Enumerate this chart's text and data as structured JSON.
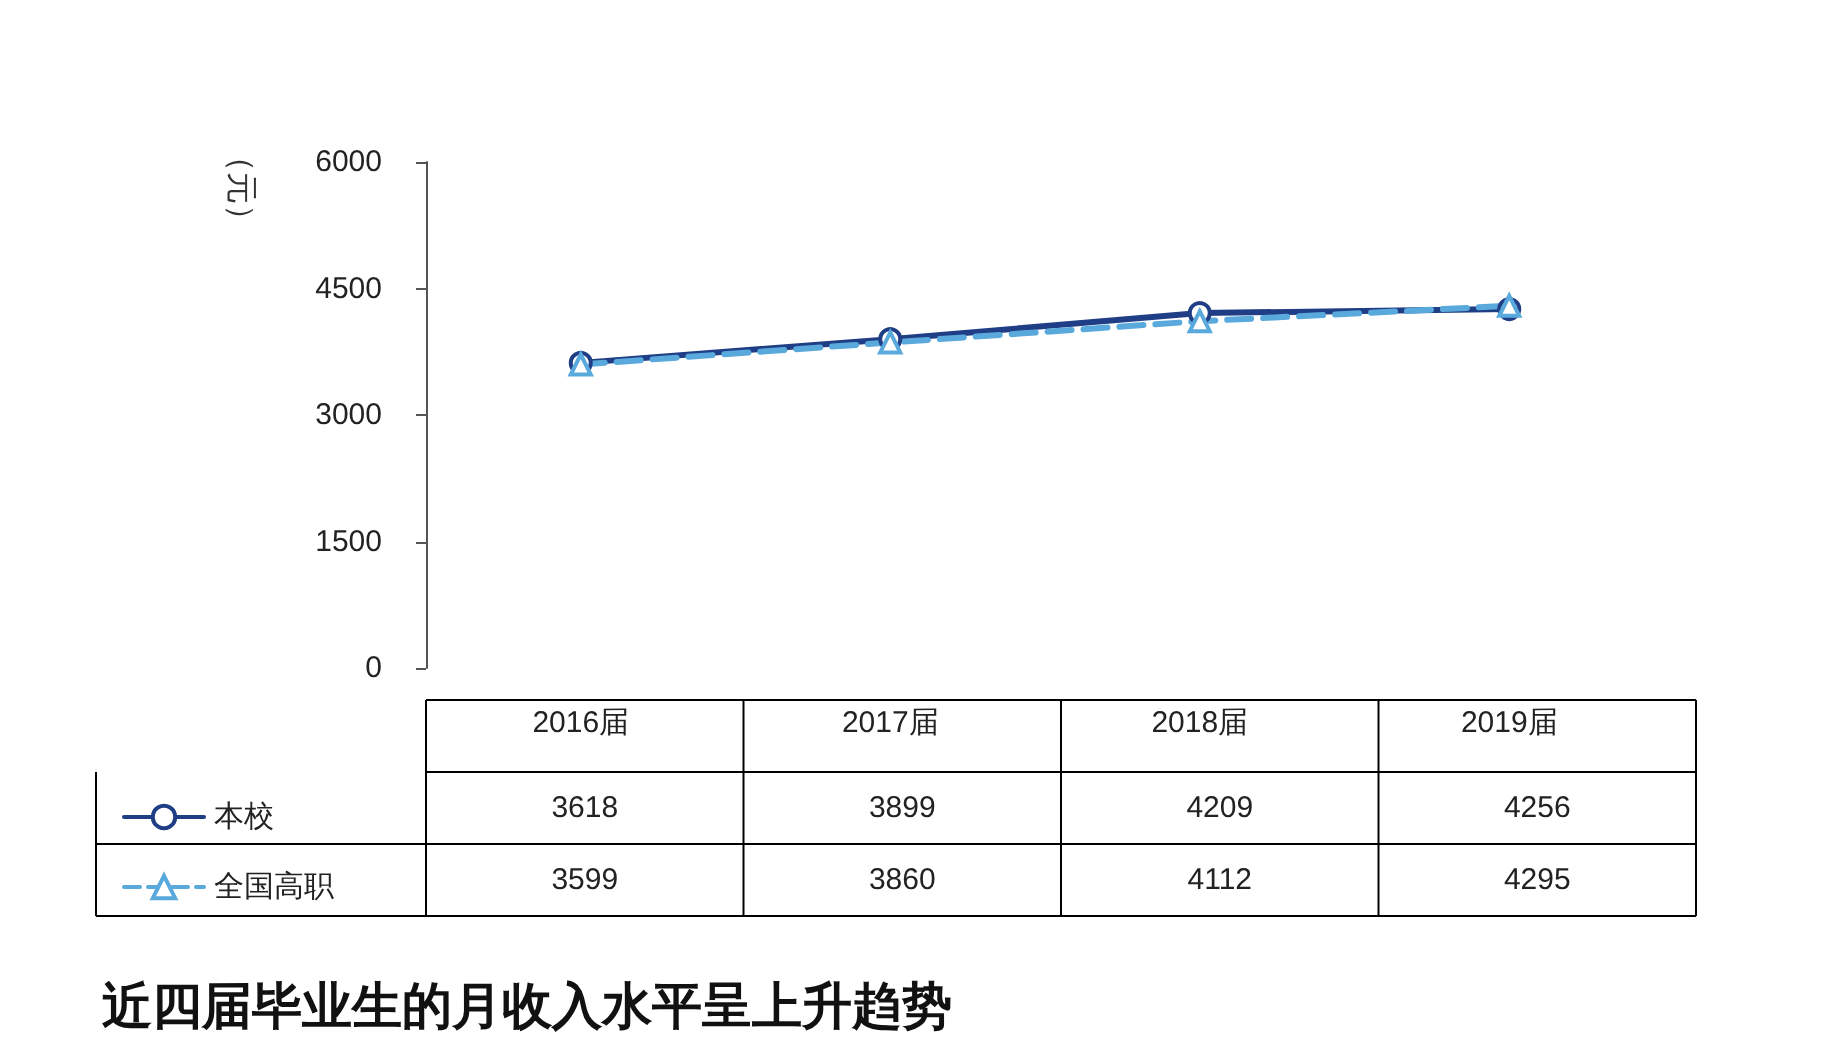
{
  "chart_data": {
    "type": "line",
    "title": "近四届毕业生的月收入水平呈上升趋势",
    "ylabel": "（元）",
    "categories": [
      "2016届",
      "2017届",
      "2018届",
      "2019届"
    ],
    "series": [
      {
        "name": "本校",
        "color": "#1f3e86",
        "values": [
          3618,
          3899,
          4209,
          4256
        ],
        "marker": "circle",
        "line_style": "solid"
      },
      {
        "name": "全国高职",
        "color": "#5aa9dc",
        "values": [
          3599,
          3860,
          4112,
          4295
        ],
        "marker": "triangle",
        "line_style": "dashed"
      }
    ],
    "ylim": [
      0,
      6000
    ],
    "yticks": [
      0,
      1500,
      3000,
      4500,
      6000
    ],
    "grid": false,
    "legend": "bottom left",
    "data_labels": true
  }
}
